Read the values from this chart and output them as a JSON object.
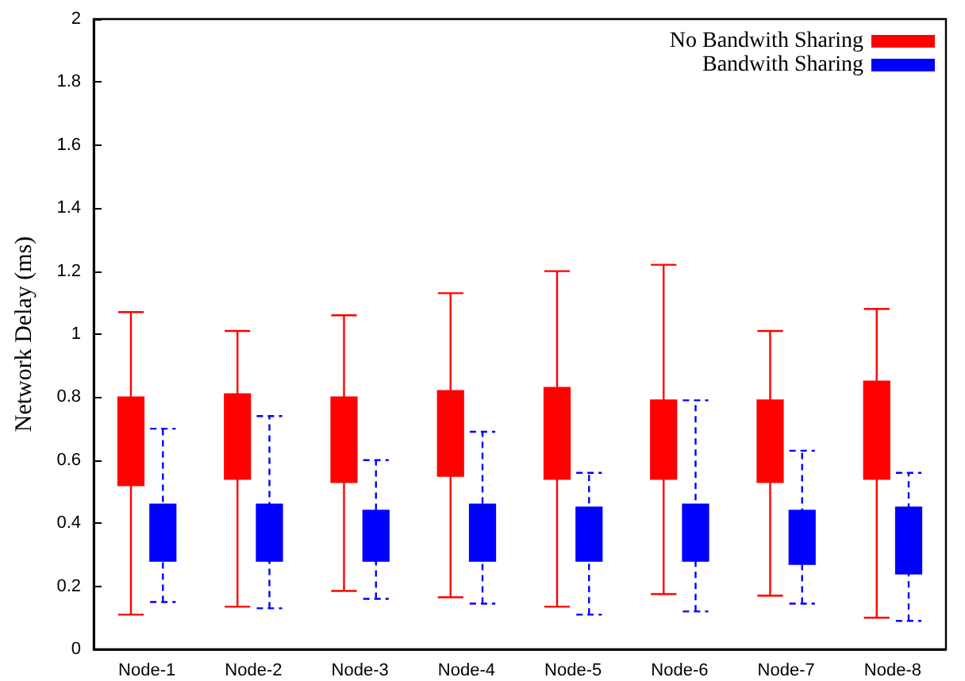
{
  "chart_data": {
    "type": "bar",
    "ylabel": "Network Delay (ms)",
    "categories": [
      "Node-1",
      "Node-2",
      "Node-3",
      "Node-4",
      "Node-5",
      "Node-6",
      "Node-7",
      "Node-8"
    ],
    "series": [
      {
        "name": "No Bandwith Sharing",
        "color": "#ff0000",
        "line_style": "solid",
        "base": [
          0.52,
          0.54,
          0.53,
          0.55,
          0.54,
          0.54,
          0.53,
          0.54
        ],
        "values": [
          0.28,
          0.27,
          0.27,
          0.27,
          0.29,
          0.25,
          0.26,
          0.31
        ],
        "errors": [
          [
            0.11,
            1.07
          ],
          [
            0.135,
            1.01
          ],
          [
            0.185,
            1.06
          ],
          [
            0.165,
            1.13
          ],
          [
            0.135,
            1.2
          ],
          [
            0.175,
            1.22
          ],
          [
            0.17,
            1.01
          ],
          [
            0.1,
            1.08
          ]
        ]
      },
      {
        "name": "Bandwith Sharing",
        "color": "#0000ff",
        "line_style": "dashed",
        "base": [
          0.28,
          0.28,
          0.28,
          0.28,
          0.28,
          0.28,
          0.27,
          0.24
        ],
        "values": [
          0.18,
          0.18,
          0.16,
          0.18,
          0.17,
          0.18,
          0.17,
          0.21
        ],
        "errors": [
          [
            0.15,
            0.7
          ],
          [
            0.13,
            0.74
          ],
          [
            0.16,
            0.6
          ],
          [
            0.145,
            0.69
          ],
          [
            0.11,
            0.56
          ],
          [
            0.12,
            0.79
          ],
          [
            0.145,
            0.63
          ],
          [
            0.09,
            0.56
          ]
        ]
      }
    ],
    "ylim": [
      0,
      2
    ],
    "yticks": [
      0,
      0.2,
      0.4,
      0.6,
      0.8,
      1,
      1.2,
      1.4,
      1.6,
      1.8,
      2
    ],
    "grid": false,
    "legend": "top right"
  }
}
